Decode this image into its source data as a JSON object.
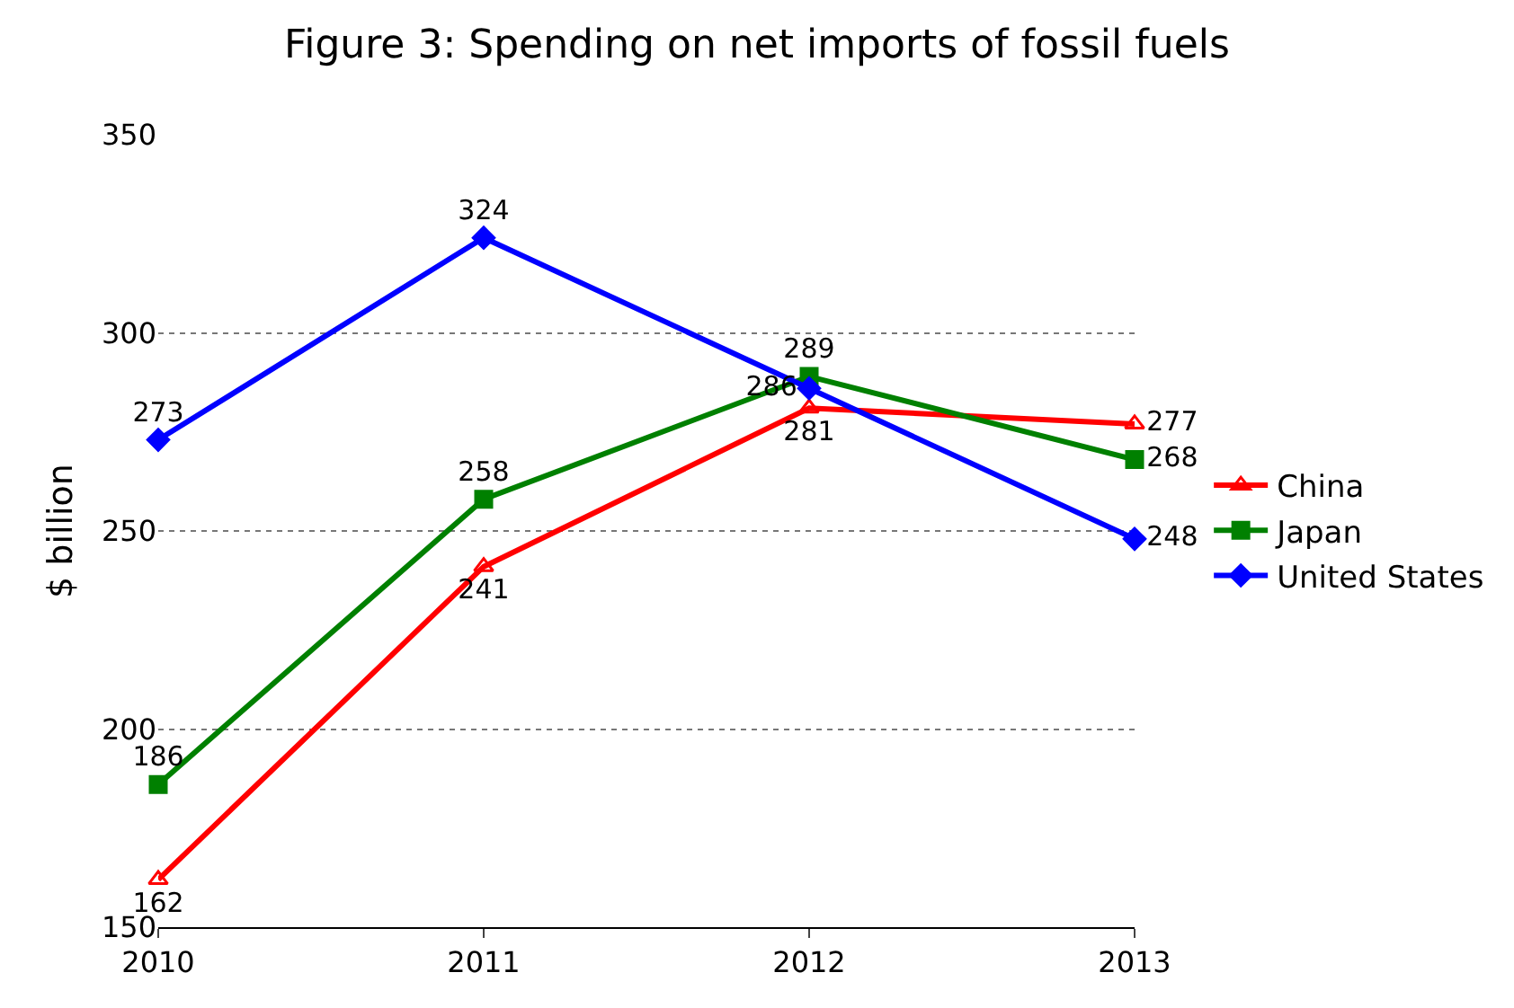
{
  "chart_data": {
    "type": "line",
    "title": "Figure 3: Spending on net imports of fossil fuels",
    "ylabel": "$ billion",
    "categories": [
      "2010",
      "2011",
      "2012",
      "2013"
    ],
    "series": [
      {
        "name": "China",
        "color": "#ff0000",
        "marker": "triangle",
        "values": [
          162,
          241,
          281,
          277
        ]
      },
      {
        "name": "Japan",
        "color": "#008000",
        "marker": "square",
        "values": [
          186,
          258,
          289,
          268
        ]
      },
      {
        "name": "United States",
        "color": "#0000ff",
        "marker": "diamond",
        "values": [
          273,
          324,
          286,
          248
        ]
      }
    ],
    "ylim": [
      150,
      350
    ],
    "yticks": [
      150,
      200,
      250,
      300,
      350
    ],
    "grid": "y",
    "legend": "right",
    "data_labels": true
  }
}
